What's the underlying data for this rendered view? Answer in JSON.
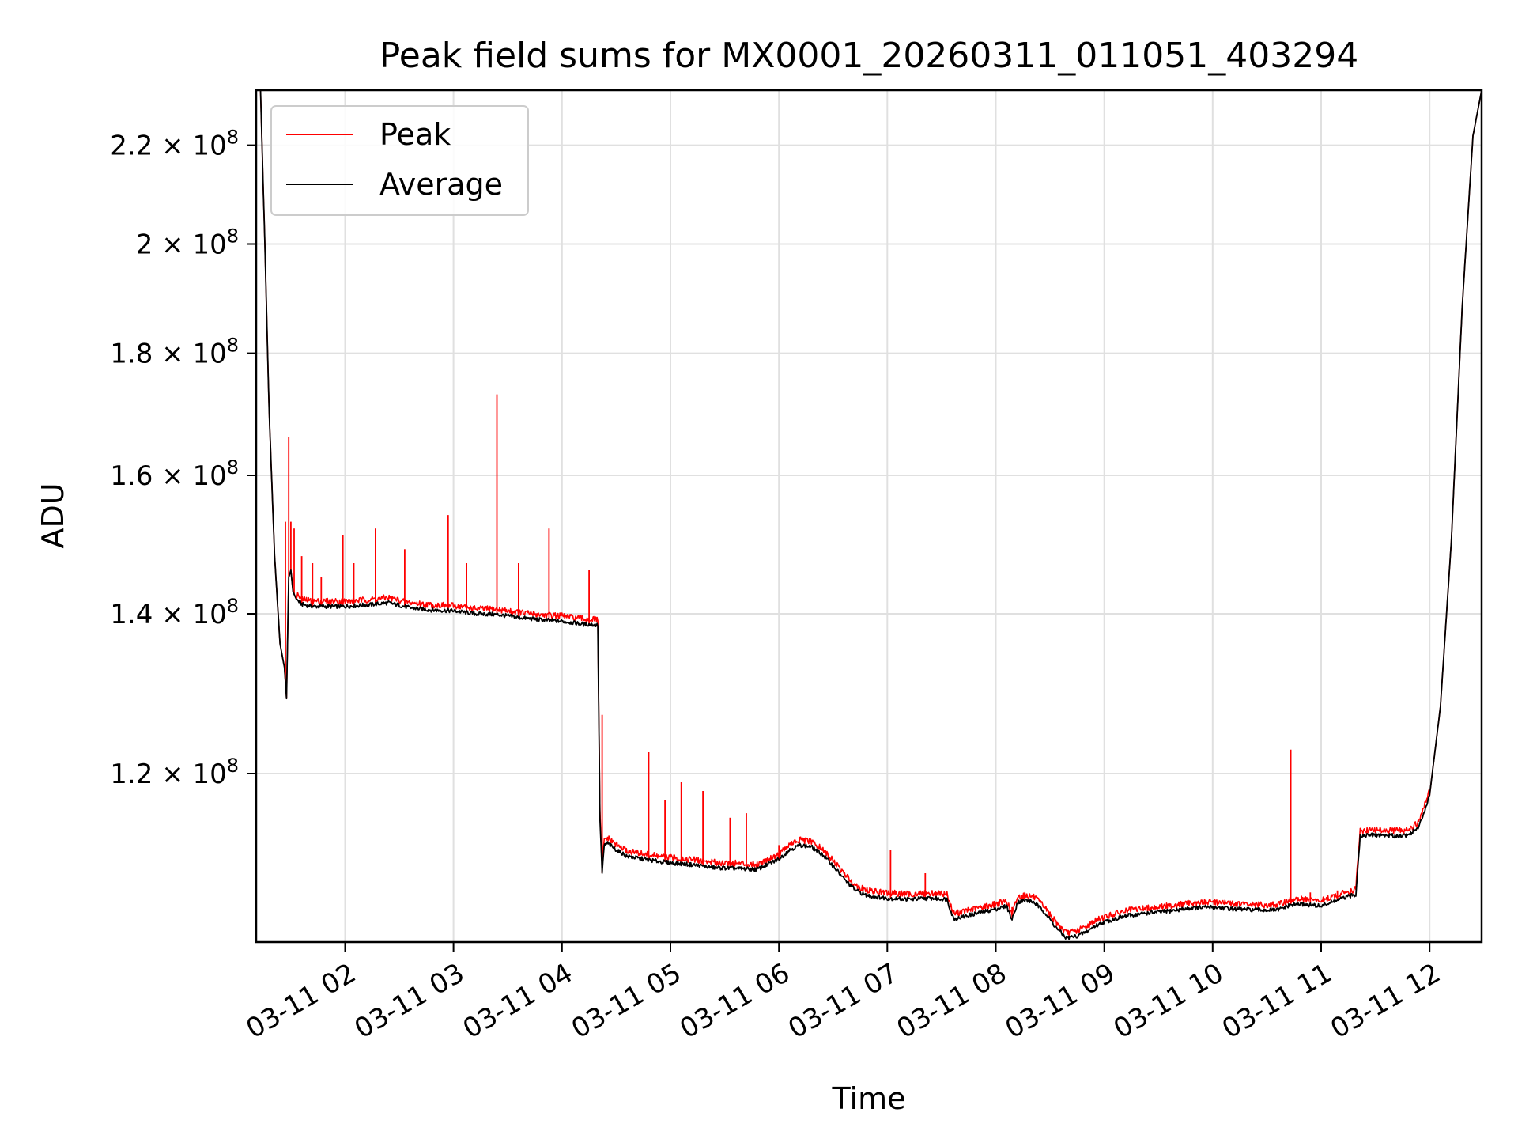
{
  "chart_data": {
    "type": "line",
    "title": "Peak field sums for MX0001_20260311_011051_403294",
    "xlabel": "Time",
    "ylabel": "ADU",
    "yscale": "log",
    "grid": true,
    "legend_position": "top-left",
    "xlim_hours": [
      1.18,
      12.48
    ],
    "ylim": [
      102000000,
      232000000
    ],
    "x_ticks": [
      {
        "hour": 2,
        "label": "03-11 02"
      },
      {
        "hour": 3,
        "label": "03-11 03"
      },
      {
        "hour": 4,
        "label": "03-11 04"
      },
      {
        "hour": 5,
        "label": "03-11 05"
      },
      {
        "hour": 6,
        "label": "03-11 06"
      },
      {
        "hour": 7,
        "label": "03-11 07"
      },
      {
        "hour": 8,
        "label": "03-11 08"
      },
      {
        "hour": 9,
        "label": "03-11 09"
      },
      {
        "hour": 10,
        "label": "03-11 10"
      },
      {
        "hour": 11,
        "label": "03-11 11"
      },
      {
        "hour": 12,
        "label": "03-11 12"
      }
    ],
    "y_ticks": [
      {
        "value": 120000000,
        "mantissa": "1.2",
        "exponent": "8"
      },
      {
        "value": 140000000,
        "mantissa": "1.4",
        "exponent": "8"
      },
      {
        "value": 160000000,
        "mantissa": "1.6",
        "exponent": "8"
      },
      {
        "value": 180000000,
        "mantissa": "1.8",
        "exponent": "8"
      },
      {
        "value": 200000000,
        "mantissa": "2",
        "exponent": "8"
      },
      {
        "value": 220000000,
        "mantissa": "2.2",
        "exponent": "8"
      }
    ],
    "series": [
      {
        "name": "Average",
        "color": "#000000",
        "x_hours": [
          1.18,
          1.22,
          1.26,
          1.3,
          1.35,
          1.4,
          1.44,
          1.46,
          1.48,
          1.5,
          1.52,
          1.55,
          1.6,
          1.7,
          1.85,
          2.0,
          2.2,
          2.4,
          2.6,
          2.8,
          3.0,
          3.2,
          3.4,
          3.6,
          3.8,
          4.0,
          4.2,
          4.33,
          4.35,
          4.37,
          4.39,
          4.42,
          4.5,
          4.6,
          4.8,
          5.0,
          5.2,
          5.4,
          5.6,
          5.8,
          6.0,
          6.1,
          6.2,
          6.3,
          6.4,
          6.5,
          6.6,
          6.7,
          6.8,
          7.0,
          7.2,
          7.4,
          7.55,
          7.6,
          7.62,
          7.8,
          8.0,
          8.1,
          8.15,
          8.2,
          8.28,
          8.35,
          8.45,
          8.55,
          8.65,
          8.75,
          8.85,
          8.9,
          9.0,
          9.2,
          9.4,
          9.6,
          9.8,
          10.0,
          10.2,
          10.4,
          10.6,
          10.72,
          10.8,
          11.0,
          11.2,
          11.32,
          11.34,
          11.36,
          11.5,
          11.7,
          11.8,
          11.9,
          12.0,
          12.1,
          12.2,
          12.3,
          12.4,
          12.48
        ],
        "values": [
          232000000,
          232000000,
          200000000,
          170000000,
          148000000,
          136000000,
          133000000,
          129000000,
          145000000,
          146000000,
          143000000,
          142000000,
          141300000,
          141000000,
          141000000,
          141000000,
          141200000,
          141500000,
          140800000,
          140500000,
          140400000,
          140000000,
          139900000,
          139500000,
          139200000,
          139000000,
          138600000,
          138500000,
          115000000,
          109000000,
          112000000,
          112200000,
          111500000,
          110800000,
          110400000,
          110100000,
          109900000,
          109600000,
          109500000,
          109400000,
          110500000,
          111500000,
          112000000,
          111800000,
          111000000,
          109800000,
          108400000,
          107300000,
          106700000,
          106400000,
          106300000,
          106400000,
          106300000,
          104600000,
          104300000,
          104800000,
          105300000,
          105600000,
          104200000,
          106000000,
          106200000,
          106000000,
          105000000,
          103500000,
          102400000,
          102600000,
          103100000,
          103500000,
          104000000,
          104600000,
          104900000,
          105100000,
          105400000,
          105500000,
          105300000,
          105200000,
          105200000,
          105700000,
          105800000,
          105600000,
          106400000,
          106800000,
          110000000,
          113000000,
          113100000,
          113000000,
          113100000,
          113900000,
          117500000,
          128000000,
          150000000,
          188000000,
          222000000,
          232000000
        ]
      },
      {
        "name": "Peak",
        "color": "#ff0000",
        "spikes": [
          {
            "hour": 1.45,
            "value": 153000000
          },
          {
            "hour": 1.48,
            "value": 166000000
          },
          {
            "hour": 1.5,
            "value": 153000000
          },
          {
            "hour": 1.53,
            "value": 152000000
          },
          {
            "hour": 1.6,
            "value": 148000000
          },
          {
            "hour": 1.7,
            "value": 147000000
          },
          {
            "hour": 1.78,
            "value": 145000000
          },
          {
            "hour": 1.98,
            "value": 151000000
          },
          {
            "hour": 2.08,
            "value": 147000000
          },
          {
            "hour": 2.28,
            "value": 152000000
          },
          {
            "hour": 2.55,
            "value": 149000000
          },
          {
            "hour": 2.95,
            "value": 154000000
          },
          {
            "hour": 3.12,
            "value": 147000000
          },
          {
            "hour": 3.4,
            "value": 173000000
          },
          {
            "hour": 3.6,
            "value": 147000000
          },
          {
            "hour": 3.88,
            "value": 152000000
          },
          {
            "hour": 4.25,
            "value": 146000000
          },
          {
            "hour": 4.37,
            "value": 127000000
          },
          {
            "hour": 4.8,
            "value": 122500000
          },
          {
            "hour": 4.95,
            "value": 117000000
          },
          {
            "hour": 5.1,
            "value": 119000000
          },
          {
            "hour": 5.3,
            "value": 118000000
          },
          {
            "hour": 5.55,
            "value": 115000000
          },
          {
            "hour": 5.7,
            "value": 115500000
          },
          {
            "hour": 6.0,
            "value": 112000000
          },
          {
            "hour": 7.03,
            "value": 111500000
          },
          {
            "hour": 7.35,
            "value": 109000000
          },
          {
            "hour": 8.15,
            "value": 105500000
          },
          {
            "hour": 9.4,
            "value": 105500000
          },
          {
            "hour": 9.85,
            "value": 106000000
          },
          {
            "hour": 10.72,
            "value": 122800000
          },
          {
            "hour": 10.9,
            "value": 107000000
          },
          {
            "hour": 11.15,
            "value": 107200000
          }
        ]
      }
    ]
  }
}
